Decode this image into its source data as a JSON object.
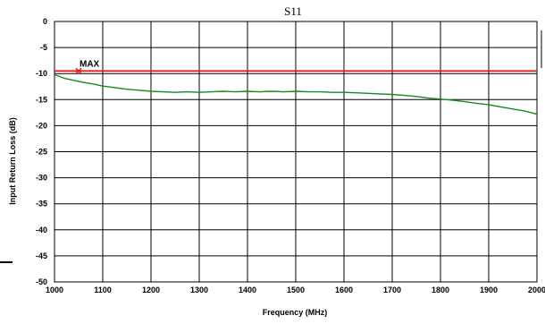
{
  "chart_data": {
    "type": "line",
    "title": "S11",
    "xlabel": "Frequency (MHz)",
    "ylabel": "Input Return Loss (dB)",
    "xlim": [
      1000,
      2000
    ],
    "ylim": [
      -50,
      0
    ],
    "x_ticks": [
      1000,
      1100,
      1200,
      1300,
      1400,
      1500,
      1600,
      1700,
      1800,
      1900,
      2000
    ],
    "y_ticks": [
      0,
      -5,
      -10,
      -15,
      -20,
      -25,
      -30,
      -35,
      -40,
      -45,
      -50
    ],
    "grid": true,
    "series": [
      {
        "color": "#1a8a1a",
        "x": [
          1000,
          1020,
          1040,
          1060,
          1080,
          1100,
          1125,
          1150,
          1175,
          1200,
          1225,
          1250,
          1275,
          1300,
          1325,
          1350,
          1375,
          1400,
          1425,
          1450,
          1475,
          1500,
          1525,
          1550,
          1575,
          1600,
          1625,
          1650,
          1675,
          1700,
          1725,
          1750,
          1775,
          1800,
          1825,
          1850,
          1875,
          1900,
          1925,
          1950,
          1975,
          2000
        ],
        "y": [
          -10.2,
          -10.9,
          -11.3,
          -11.7,
          -12.0,
          -12.4,
          -12.7,
          -13.0,
          -13.2,
          -13.4,
          -13.5,
          -13.6,
          -13.5,
          -13.6,
          -13.5,
          -13.4,
          -13.5,
          -13.4,
          -13.5,
          -13.4,
          -13.5,
          -13.4,
          -13.5,
          -13.5,
          -13.6,
          -13.6,
          -13.7,
          -13.8,
          -13.9,
          -14.0,
          -14.2,
          -14.4,
          -14.7,
          -14.9,
          -15.1,
          -15.4,
          -15.7,
          -16.0,
          -16.4,
          -16.8,
          -17.2,
          -17.8
        ]
      },
      {
        "color": "#e02020",
        "x": [
          1000,
          2000
        ],
        "y": [
          -9.5,
          -9.5
        ]
      }
    ],
    "annotations": [
      {
        "text": "MAX",
        "x": 1050,
        "y": -9.5,
        "color": "#e02020"
      }
    ]
  }
}
